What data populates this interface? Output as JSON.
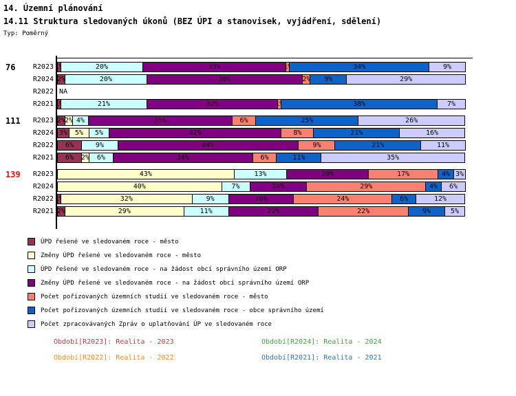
{
  "header": {
    "title1": "14. Územní plánování",
    "title2": "14.11 Struktura sledovaných úkonů (BEZ ÚPI a stanovisek, vyjádření, sdělení)",
    "type_label": "Typ: Poměrný"
  },
  "chart_data": {
    "type": "bar",
    "orientation": "horizontal-stacked-100pct",
    "unit": "%",
    "xlim": [
      0,
      100
    ],
    "na_label": "NA",
    "legend_position": "bottom-left",
    "legend": [
      {
        "key": "upd-resene-mesto",
        "label": "ÚPD řešené ve sledovaném roce - město",
        "color": "#993355"
      },
      {
        "key": "zmeny-upd-resene-mesto",
        "label": "Změny ÚPD řešené ve sledovaném roce - město",
        "color": "#FFFFCC"
      },
      {
        "key": "upd-resene-orp",
        "label": "ÚPD řešené ve sledovaném roce - na žádost obcí správního území ORP",
        "color": "#CCFFFF"
      },
      {
        "key": "zmeny-upd-resene-orp",
        "label": "Změny ÚPD řešené ve sledovaném roce - na žádost obcí správního území ORP",
        "color": "#800080"
      },
      {
        "key": "studie-mesto",
        "label": "Počet pořizovaných územních studií ve sledovaném roce - město",
        "color": "#FA8072"
      },
      {
        "key": "studie-obce",
        "label": "Počet pořizovaných územních studií ve sledovaném roce - obce správního území",
        "color": "#0E63C8"
      },
      {
        "key": "zpravy-up",
        "label": "Počet zpracovávaných Zpráv o uplatňování ÚP ve sledovaném roce",
        "color": "#CCCCFF"
      }
    ],
    "groups": [
      {
        "label": "76",
        "label_color": "#000000",
        "rows": [
          {
            "period": "R2023",
            "values": [
              1,
              0,
              20,
              35,
              1,
              34,
              9
            ]
          },
          {
            "period": "R2024",
            "values": [
              2,
              0,
              20,
              38,
              2,
              9,
              29
            ]
          },
          {
            "period": "R2022",
            "na": true
          },
          {
            "period": "R2021",
            "values": [
              1,
              0,
              21,
              32,
              1,
              38,
              7
            ]
          }
        ]
      },
      {
        "label": "111",
        "label_color": "#000000",
        "rows": [
          {
            "period": "R2023",
            "values": [
              2,
              2,
              4,
              35,
              6,
              25,
              26
            ]
          },
          {
            "period": "R2024",
            "values": [
              3,
              5,
              5,
              42,
              8,
              21,
              16
            ]
          },
          {
            "period": "R2022",
            "values": [
              6,
              0,
              9,
              44,
              9,
              21,
              11
            ]
          },
          {
            "period": "R2021",
            "values": [
              6,
              2,
              6,
              34,
              6,
              11,
              35
            ]
          }
        ]
      },
      {
        "label": "139",
        "label_color": "#EE1111",
        "rows": [
          {
            "period": "R2023",
            "values": [
              0,
              43,
              13,
              20,
              17,
              4,
              3
            ]
          },
          {
            "period": "R2024",
            "values": [
              0,
              40,
              7,
              14,
              29,
              4,
              6
            ]
          },
          {
            "period": "R2022",
            "values": [
              1,
              32,
              9,
              16,
              24,
              6,
              12
            ]
          },
          {
            "period": "R2021",
            "values": [
              2,
              29,
              11,
              22,
              22,
              9,
              5
            ]
          }
        ]
      }
    ]
  },
  "period_legend": [
    {
      "label": "Období[R2023]: Realita - 2023",
      "color": "#C43C3C"
    },
    {
      "label": "Období[R2024]: Realita - 2024",
      "color": "#3FA53F"
    },
    {
      "label": "Období[R2022]: Realita - 2022",
      "color": "#F08C28"
    },
    {
      "label": "Období[R2021]: Realita - 2021",
      "color": "#2E79B5"
    }
  ]
}
